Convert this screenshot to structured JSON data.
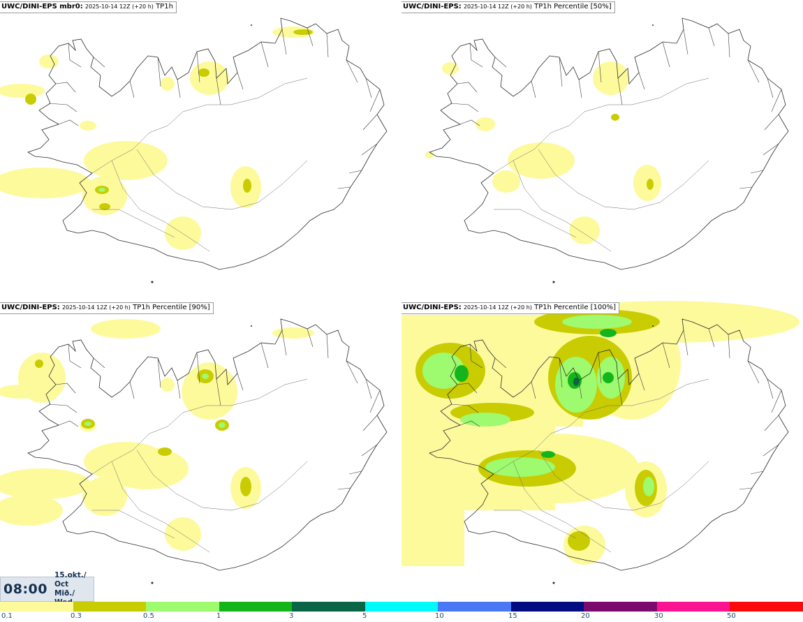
{
  "panels": [
    {
      "model": "UWC/DINI-EPS mbr0",
      "run": "2025-10-14 12Z (+20 h)",
      "product": "TP1h"
    },
    {
      "model": "UWC/DINI-EPS",
      "run": "2025-10-14 12Z (+20 h)",
      "product": "TP1h Percentile [50%]"
    },
    {
      "model": "UWC/DINI-EPS",
      "run": "2025-10-14 12Z (+20 h)",
      "product": "TP1h Percentile [90%]"
    },
    {
      "model": "UWC/DINI-EPS",
      "run": "2025-10-14 12Z (+20 h)",
      "product": "TP1h Percentile [100%]"
    }
  ],
  "valid_time": {
    "time": "08:00",
    "date_line": "15.okt./ Oct",
    "day_line": "Mið./ Wed"
  },
  "legend": {
    "labels": [
      "0.1",
      "0.3",
      "0.5",
      "1",
      "3",
      "5",
      "10",
      "15",
      "20",
      "30",
      "50"
    ],
    "colors": [
      "#fdfa9c",
      "#c8cc00",
      "#9efa6e",
      "#13b51b",
      "#0a6446",
      "#00fafa",
      "#4a78f5",
      "#000c80",
      "#7a0a6e",
      "#fa1492",
      "#fa0a0a"
    ]
  },
  "map_colors": {
    "coast": "#2b2b2b",
    "light": "#fdfa9c",
    "olive": "#c8cc00",
    "lightgreen": "#9efa6e",
    "green": "#13b51b"
  }
}
